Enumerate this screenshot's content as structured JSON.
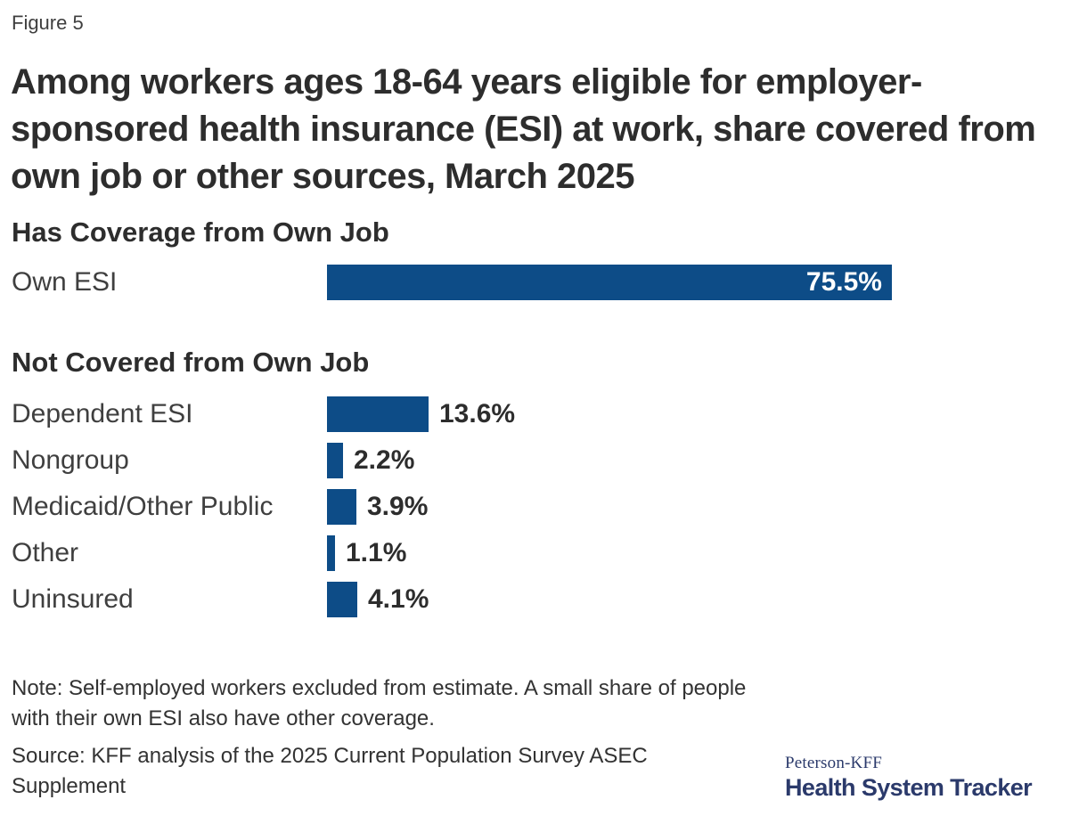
{
  "figure_label": "Figure 5",
  "title_lines": [
    "Among workers ages 18-64 years eligible for employer-",
    "sponsored health insurance (ESI) at work, share covered from",
    "own job or other sources, March 2025"
  ],
  "chart_data": {
    "type": "bar",
    "orientation": "horizontal",
    "unit": "percent",
    "title": "Among workers ages 18-64 years eligible for employer-sponsored health insurance (ESI) at work, share covered from own job or other sources, March 2025",
    "bar_color": "#0d4c87",
    "xlim": [
      0,
      80
    ],
    "grid": false,
    "legend": "none",
    "groups": [
      {
        "heading": "Has Coverage from Own Job",
        "rows": [
          {
            "label": "Own ESI",
            "value": 75.5,
            "display": "75.5%",
            "value_label_position": "inside"
          }
        ]
      },
      {
        "heading": "Not Covered from Own Job",
        "rows": [
          {
            "label": "Dependent ESI",
            "value": 13.6,
            "display": "13.6%",
            "value_label_position": "outside"
          },
          {
            "label": "Nongroup",
            "value": 2.2,
            "display": "2.2%",
            "value_label_position": "outside"
          },
          {
            "label": "Medicaid/Other Public",
            "value": 3.9,
            "display": "3.9%",
            "value_label_position": "outside"
          },
          {
            "label": "Other",
            "value": 1.1,
            "display": "1.1%",
            "value_label_position": "outside"
          },
          {
            "label": "Uninsured",
            "value": 4.1,
            "display": "4.1%",
            "value_label_position": "outside"
          }
        ]
      }
    ]
  },
  "notes": {
    "note": "Note: Self-employed workers excluded from estimate. A small share of people with their own ESI also have other coverage.",
    "source": "Source: KFF analysis of the 2025 Current Population Survey ASEC Supplement"
  },
  "logo": {
    "line1": "Peterson-KFF",
    "line2": "Health System Tracker",
    "color": "#2b3a6b"
  }
}
